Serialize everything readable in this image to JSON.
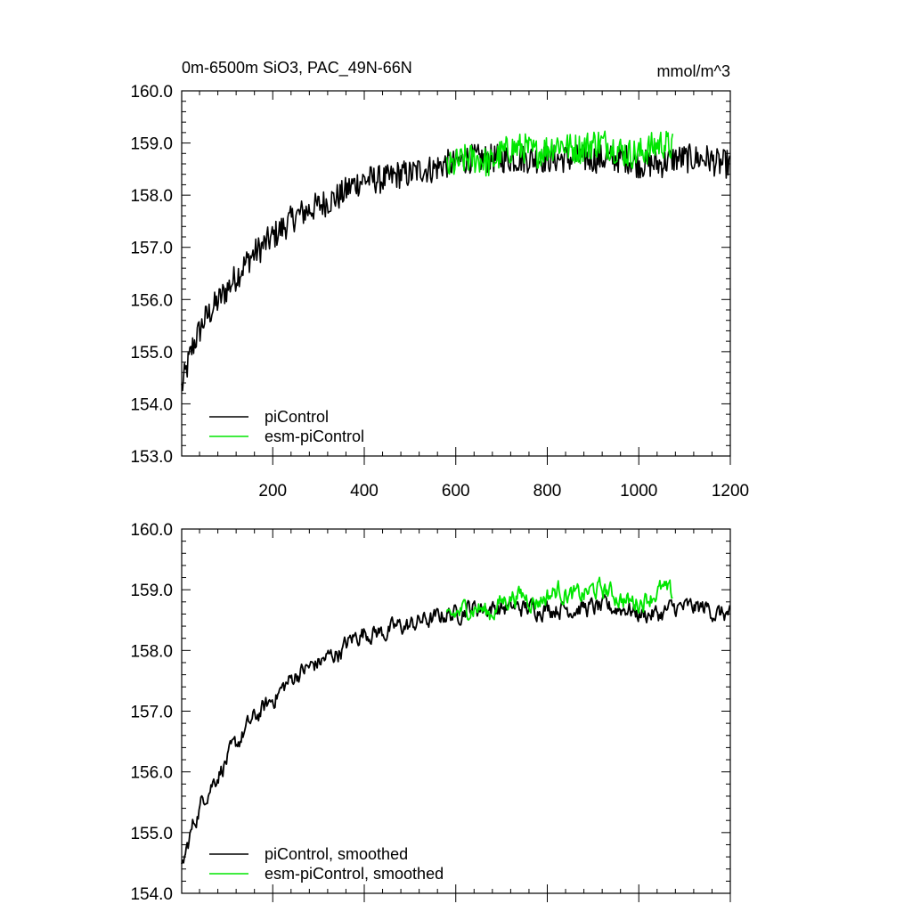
{
  "chart_data": [
    {
      "type": "line",
      "title": "0m-6500m SiO3, PAC_49N-66N",
      "units": "mmol/m^3",
      "xlim": [
        1,
        1200
      ],
      "ylim": [
        153,
        160
      ],
      "x_ticks": [
        200,
        400,
        600,
        800,
        1000,
        1200
      ],
      "y_ticks": [
        "153.0",
        "154.0",
        "155.0",
        "156.0",
        "157.0",
        "158.0",
        "159.0",
        "160.0"
      ],
      "legend_position": "bottom-left",
      "series": [
        {
          "name": "piControl",
          "color": "#000000",
          "x": [
            1,
            25,
            50,
            75,
            100,
            125,
            150,
            175,
            200,
            225,
            250,
            275,
            300,
            325,
            350,
            375,
            400,
            425,
            450,
            475,
            500,
            525,
            550,
            575,
            600,
            625,
            650,
            675,
            700,
            725,
            750,
            775,
            800,
            825,
            850,
            875,
            900,
            925,
            950,
            975,
            1000,
            1025,
            1050,
            1075,
            1100,
            1125,
            1150,
            1175,
            1200
          ],
          "values": [
            154.3,
            155.1,
            155.6,
            155.9,
            156.2,
            156.5,
            156.8,
            157.0,
            157.2,
            157.4,
            157.6,
            157.7,
            157.8,
            157.9,
            158.0,
            158.2,
            158.3,
            158.3,
            158.3,
            158.4,
            158.4,
            158.5,
            158.5,
            158.6,
            158.6,
            158.7,
            158.7,
            158.7,
            158.7,
            158.7,
            158.7,
            158.7,
            158.7,
            158.7,
            158.7,
            158.7,
            158.7,
            158.7,
            158.7,
            158.7,
            158.6,
            158.6,
            158.6,
            158.7,
            158.7,
            158.7,
            158.7,
            158.6,
            158.6
          ],
          "noise": 0.28
        },
        {
          "name": "esm-piControl",
          "color": "#00e600",
          "x": [
            580,
            600,
            625,
            650,
            675,
            700,
            725,
            750,
            775,
            800,
            825,
            850,
            875,
            900,
            925,
            950,
            975,
            1000,
            1025,
            1050,
            1075
          ],
          "values": [
            158.5,
            158.6,
            158.7,
            158.7,
            158.6,
            158.8,
            158.9,
            158.9,
            158.8,
            158.9,
            159.0,
            158.9,
            158.9,
            159.0,
            159.0,
            158.9,
            158.8,
            158.8,
            158.9,
            159.0,
            158.9
          ],
          "noise": 0.3
        }
      ]
    },
    {
      "type": "line",
      "title": "",
      "xlim": [
        1,
        1200
      ],
      "ylim": [
        154,
        160
      ],
      "y_ticks": [
        "154.0",
        "155.0",
        "156.0",
        "157.0",
        "158.0",
        "159.0",
        "160.0"
      ],
      "legend_position": "bottom-left",
      "series": [
        {
          "name": "piControl, smoothed",
          "color": "#000000",
          "x": [
            1,
            25,
            50,
            75,
            100,
            125,
            150,
            175,
            200,
            225,
            250,
            275,
            300,
            325,
            350,
            375,
            400,
            425,
            450,
            475,
            500,
            525,
            550,
            575,
            600,
            625,
            650,
            675,
            700,
            725,
            750,
            775,
            800,
            825,
            850,
            875,
            900,
            925,
            950,
            975,
            1000,
            1025,
            1050,
            1075,
            1100,
            1125,
            1150,
            1175,
            1200
          ],
          "values": [
            154.4,
            155.1,
            155.6,
            155.9,
            156.2,
            156.5,
            156.8,
            157.0,
            157.2,
            157.4,
            157.6,
            157.7,
            157.8,
            157.9,
            158.0,
            158.2,
            158.3,
            158.3,
            158.3,
            158.4,
            158.4,
            158.5,
            158.5,
            158.6,
            158.6,
            158.7,
            158.7,
            158.7,
            158.7,
            158.7,
            158.7,
            158.7,
            158.7,
            158.7,
            158.7,
            158.7,
            158.7,
            158.7,
            158.7,
            158.7,
            158.6,
            158.6,
            158.6,
            158.7,
            158.7,
            158.7,
            158.7,
            158.6,
            158.6
          ],
          "noise": 0.14
        },
        {
          "name": "esm-piControl, smoothed",
          "color": "#00e600",
          "x": [
            580,
            600,
            625,
            650,
            675,
            700,
            725,
            750,
            775,
            800,
            825,
            850,
            875,
            900,
            925,
            950,
            975,
            1000,
            1025,
            1050,
            1075
          ],
          "values": [
            158.5,
            158.6,
            158.7,
            158.7,
            158.6,
            158.8,
            158.9,
            158.9,
            158.8,
            158.9,
            159.0,
            158.9,
            158.9,
            159.0,
            159.0,
            158.9,
            158.8,
            158.8,
            158.9,
            159.0,
            158.9
          ],
          "noise": 0.15
        }
      ]
    }
  ]
}
